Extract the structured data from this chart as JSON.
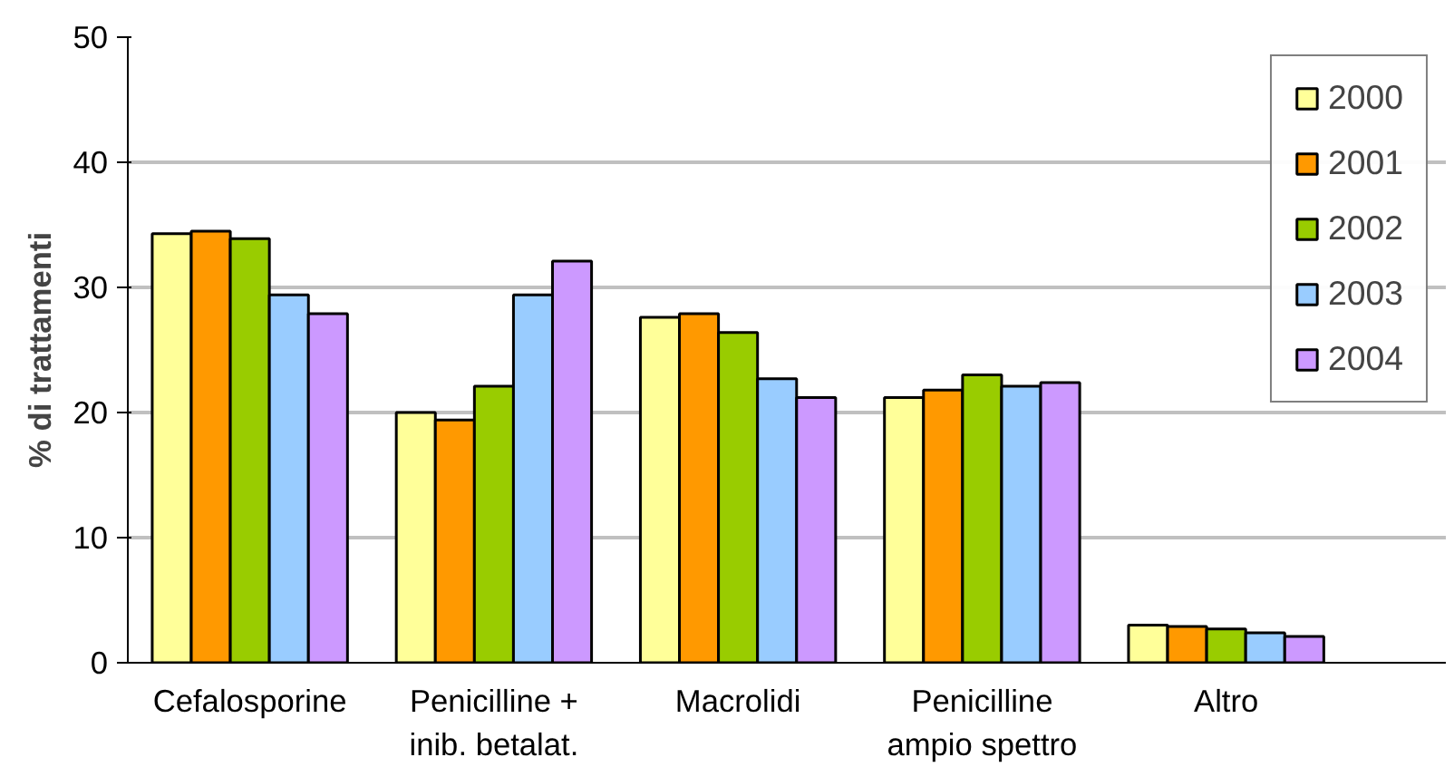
{
  "chart_data": {
    "type": "bar",
    "ylabel": "% di trattamenti",
    "categories": [
      "Cefalosporine",
      "Penicilline +\ninib. betalat.",
      "Macrolidi",
      "Penicilline\nampio spettro",
      "Altro"
    ],
    "series": [
      {
        "name": "2000",
        "color": "#ffff99",
        "values": [
          34.3,
          20.0,
          27.6,
          21.2,
          3.0
        ]
      },
      {
        "name": "2001",
        "color": "#ff9900",
        "values": [
          34.5,
          19.4,
          27.9,
          21.8,
          2.9
        ]
      },
      {
        "name": "2002",
        "color": "#99cc00",
        "values": [
          33.9,
          22.1,
          26.4,
          23.0,
          2.7
        ]
      },
      {
        "name": "2003",
        "color": "#99ccff",
        "values": [
          29.4,
          29.4,
          22.7,
          22.1,
          2.4
        ]
      },
      {
        "name": "2004",
        "color": "#cc99ff",
        "values": [
          27.9,
          32.1,
          21.2,
          22.4,
          2.1
        ]
      }
    ],
    "ylim": [
      0,
      50
    ],
    "yticks": [
      0,
      10,
      20,
      30,
      40,
      50
    ],
    "grid": "y",
    "legend": "top right"
  }
}
